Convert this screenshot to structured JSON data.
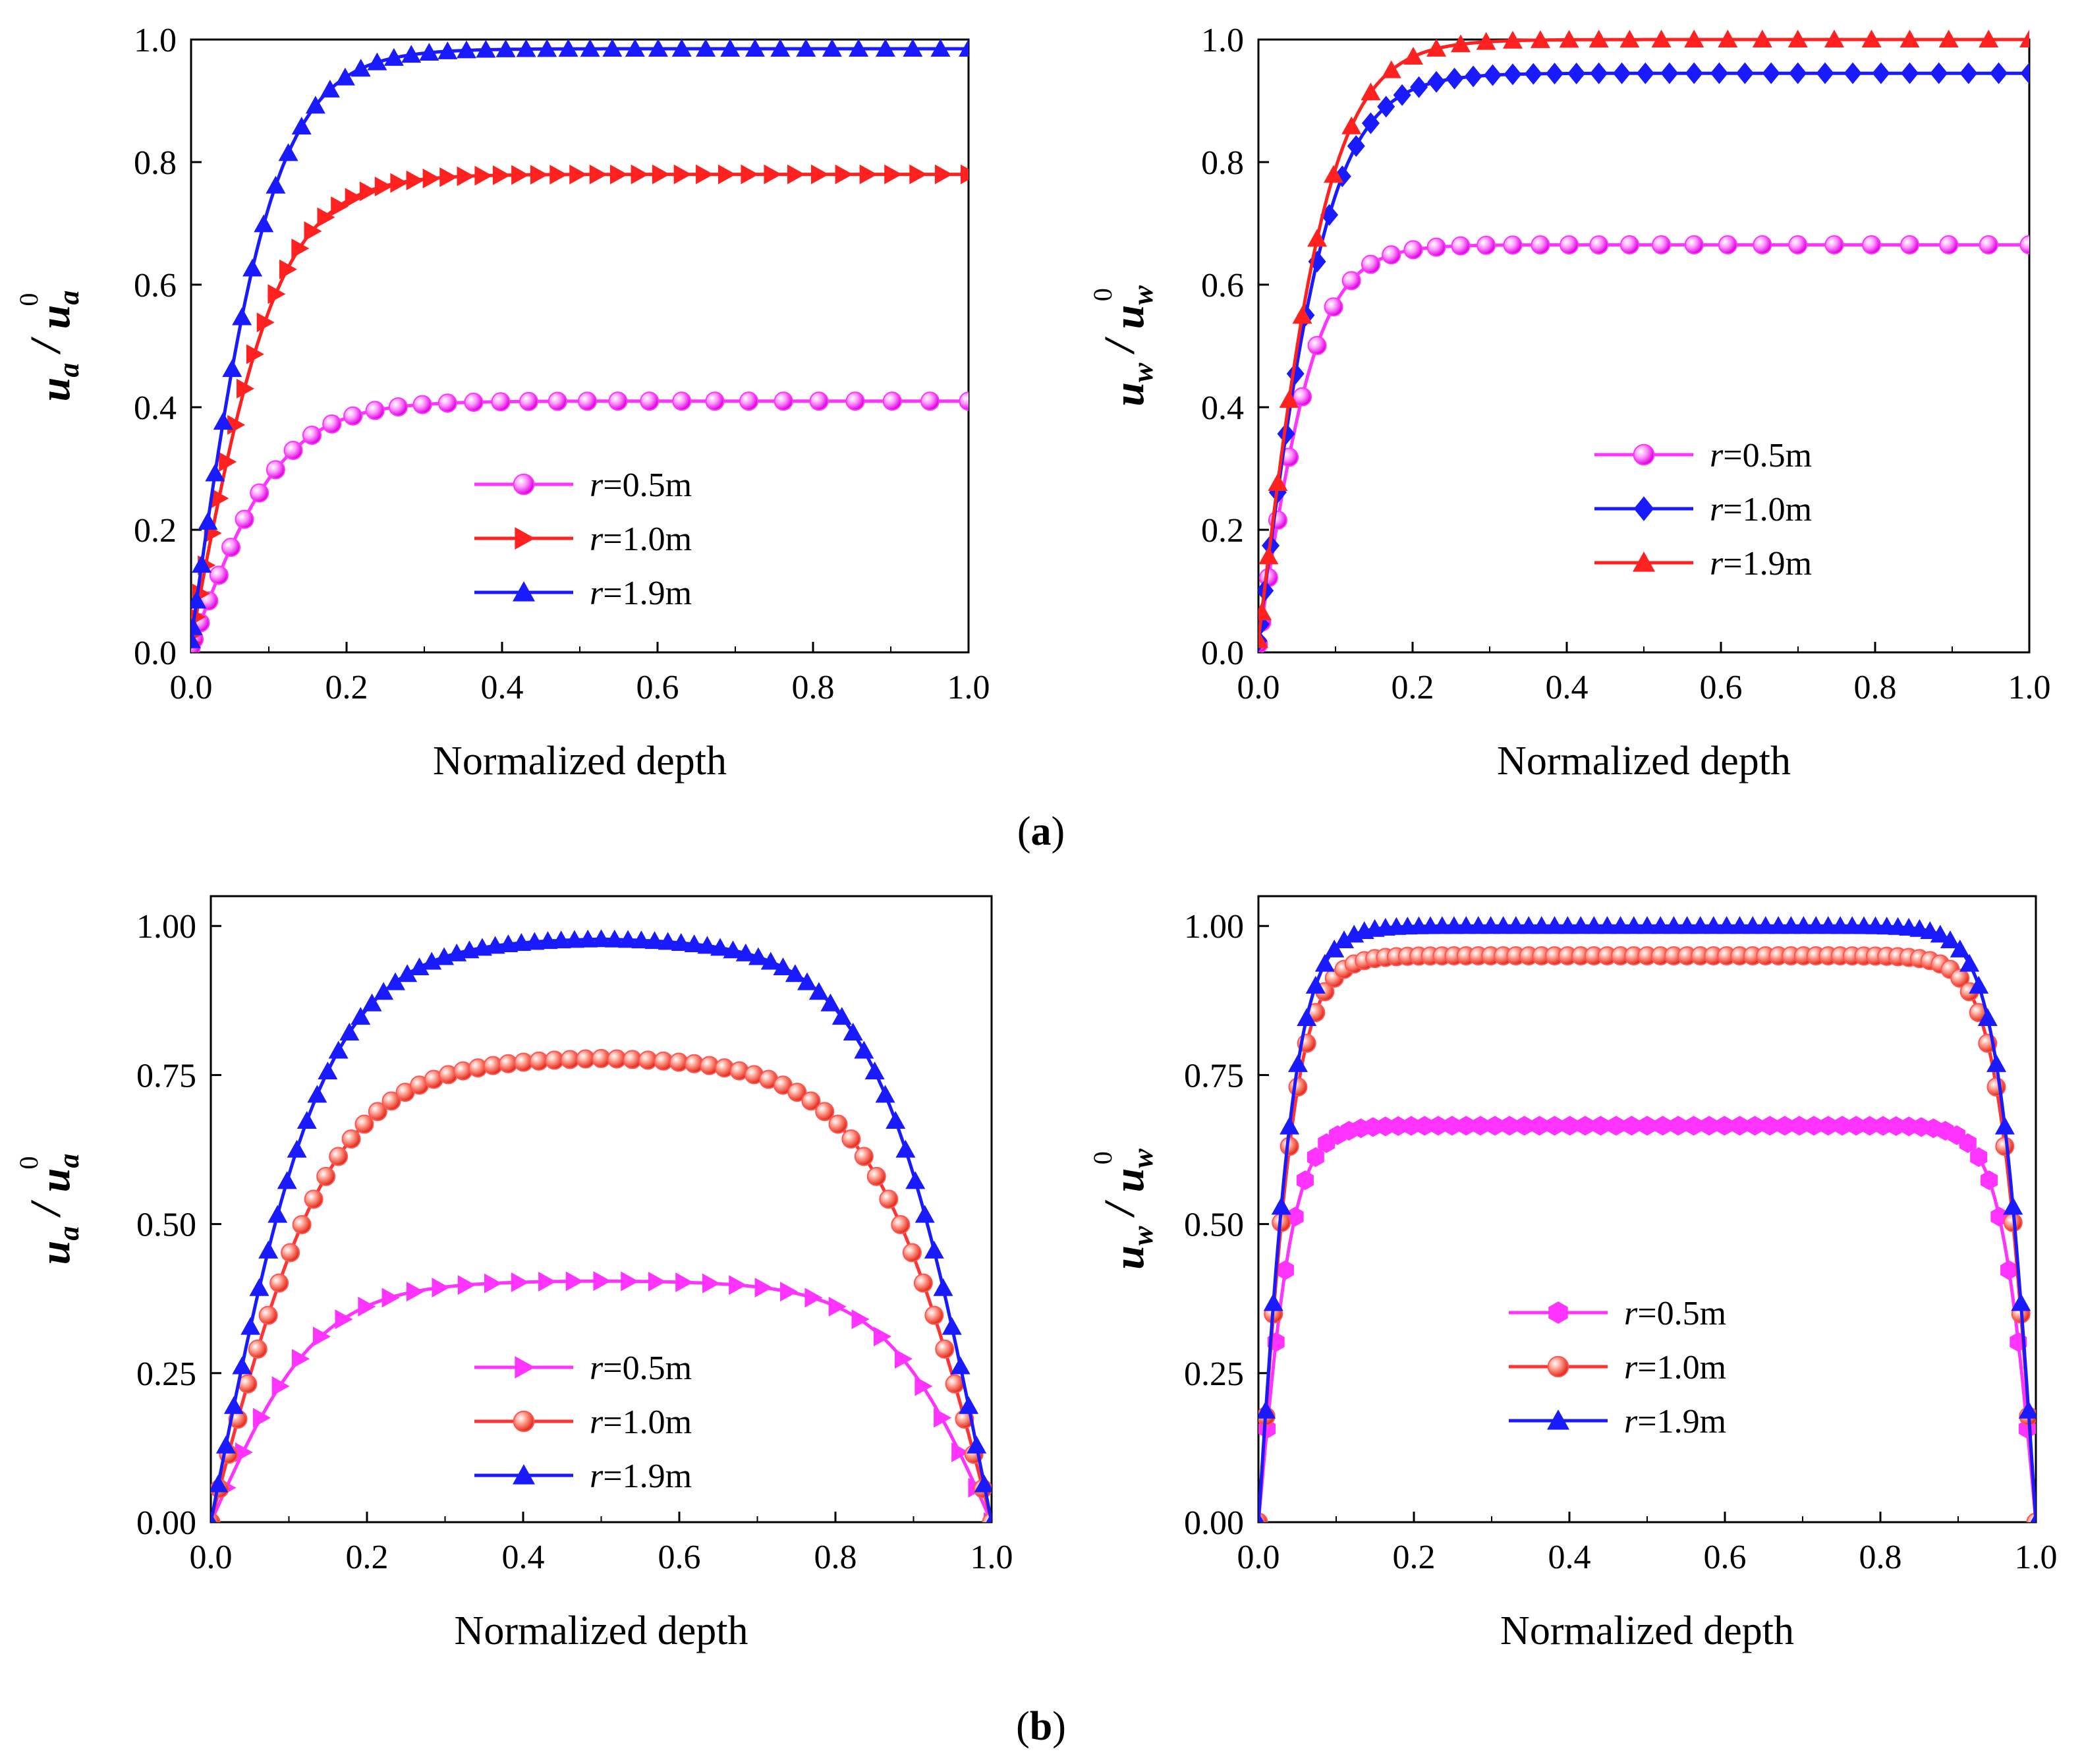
{
  "panel_labels": {
    "a": "a",
    "b": "b"
  },
  "chart_data": [
    {
      "id": "a-left",
      "type": "line",
      "xlabel": "Normalized depth",
      "ylabel": {
        "base": "u",
        "sub": "a",
        "sup": "0"
      },
      "xlim": [
        0,
        1
      ],
      "ylim": [
        0,
        1
      ],
      "xticks": [
        "0.0",
        "0.2",
        "0.4",
        "0.6",
        "0.8",
        "1.0"
      ],
      "yticks": [
        "0.0",
        "0.2",
        "0.4",
        "0.6",
        "0.8",
        "1.0"
      ],
      "legend_position": "lower-center",
      "series": [
        {
          "name": "r=0.5m",
          "label_var": "r",
          "label_val": "=0.5m",
          "color": "#ff33ff",
          "marker": "sphere",
          "marker_color": "#ff33ff",
          "plateau": 0.41,
          "rise_end": 0.38,
          "n_markers": 32
        },
        {
          "name": "r=1.0m",
          "label_var": "r",
          "label_val": "=1.0m",
          "color": "#ff2020",
          "marker": "triangle-right",
          "marker_color": "#ff2020",
          "plateau": 0.78,
          "rise_end": 0.36,
          "n_markers": 48
        },
        {
          "name": "r=1.9m",
          "label_var": "r",
          "label_val": "=1.9m",
          "color": "#1a1aff",
          "marker": "triangle-up",
          "marker_color": "#1a1aff",
          "plateau": 0.985,
          "rise_end": 0.34,
          "n_markers": 44
        }
      ]
    },
    {
      "id": "a-right",
      "type": "line",
      "xlabel": "Normalized depth",
      "ylabel": {
        "base": "u",
        "sub": "w",
        "sup": "0"
      },
      "xlim": [
        0,
        1
      ],
      "ylim": [
        0,
        1
      ],
      "xticks": [
        "0.0",
        "0.2",
        "0.4",
        "0.6",
        "0.8",
        "1.0"
      ],
      "yticks": [
        "0.0",
        "0.2",
        "0.4",
        "0.6",
        "0.8",
        "1.0"
      ],
      "legend_position": "center-right",
      "series": [
        {
          "name": "r=0.5m",
          "label_var": "r",
          "label_val": "=0.5m",
          "color": "#ff33ff",
          "marker": "sphere",
          "marker_color": "#ff33ff",
          "plateau": 0.665,
          "rise_end": 0.25,
          "n_markers": 30
        },
        {
          "name": "r=1.0m",
          "label_var": "r",
          "label_val": "=1.0m",
          "color": "#1a1aff",
          "marker": "diamond",
          "marker_color": "#1a1aff",
          "plateau": 0.945,
          "rise_end": 0.3,
          "n_markers": 40
        },
        {
          "name": "r=1.9m",
          "label_var": "r",
          "label_val": "=1.9m",
          "color": "#ff2020",
          "marker": "triangle-up",
          "marker_color": "#ff2020",
          "plateau": 1.0,
          "rise_end": 0.3,
          "n_markers": 30
        }
      ]
    },
    {
      "id": "b-left",
      "type": "line",
      "xlabel": "Normalized depth",
      "ylabel": {
        "base": "u",
        "sub": "a",
        "sup": "0"
      },
      "xlim": [
        0,
        1
      ],
      "ylim": [
        0,
        1.05
      ],
      "xticks": [
        "0.0",
        "0.2",
        "0.4",
        "0.6",
        "0.8",
        "1.0"
      ],
      "yticks": [
        "0.00",
        "0.25",
        "0.50",
        "0.75",
        "1.00"
      ],
      "ytick_values": [
        0,
        0.25,
        0.5,
        0.75,
        1.0
      ],
      "legend_position": "lower-center",
      "series": [
        {
          "name": "r=0.5m",
          "label_var": "r",
          "label_val": "=0.5m",
          "color": "#ff33ff",
          "marker": "triangle-right",
          "marker_color": "#ff33ff",
          "plateau": 0.405,
          "edge": 0.36,
          "n_markers": 34
        },
        {
          "name": "r=1.0m",
          "label_var": "r",
          "label_val": "=1.0m",
          "color": "#ff3333",
          "marker": "sphere",
          "marker_color": "#ff5555",
          "plateau": 0.78,
          "edge": 0.4,
          "n_markers": 60
        },
        {
          "name": "r=1.9m",
          "label_var": "r",
          "label_val": "=1.9m",
          "color": "#1a1aff",
          "marker": "triangle-up",
          "marker_color": "#1a1aff",
          "plateau": 0.98,
          "edge": 0.38,
          "n_markers": 70
        }
      ]
    },
    {
      "id": "b-right",
      "type": "line",
      "xlabel": "Normalized depth",
      "ylabel": {
        "base": "u",
        "sub": "w",
        "sup": "0"
      },
      "xlim": [
        0,
        1
      ],
      "ylim": [
        0,
        1.05
      ],
      "xticks": [
        "0.0",
        "0.2",
        "0.4",
        "0.6",
        "0.8",
        "1.0"
      ],
      "yticks": [
        "0.00",
        "0.25",
        "0.50",
        "0.75",
        "1.00"
      ],
      "ytick_values": [
        0,
        0.25,
        0.5,
        0.75,
        1.0
      ],
      "legend_position": "lower-center",
      "series": [
        {
          "name": "r=0.5m",
          "label_var": "r",
          "label_val": "=0.5m",
          "color": "#ff33ff",
          "marker": "hexagon",
          "marker_color": "#ff33ff",
          "plateau": 0.665,
          "edge": 0.12,
          "n_markers": 60
        },
        {
          "name": "r=1.0m",
          "label_var": "r",
          "label_val": "=1.0m",
          "color": "#ff3333",
          "marker": "sphere",
          "marker_color": "#ff5555",
          "plateau": 0.95,
          "edge": 0.13,
          "n_markers": 70
        },
        {
          "name": "r=1.9m",
          "label_var": "r",
          "label_val": "=1.9m",
          "color": "#1a1aff",
          "marker": "triangle-up",
          "marker_color": "#1a1aff",
          "plateau": 1.0,
          "edge": 0.13,
          "n_markers": 70
        }
      ]
    }
  ]
}
